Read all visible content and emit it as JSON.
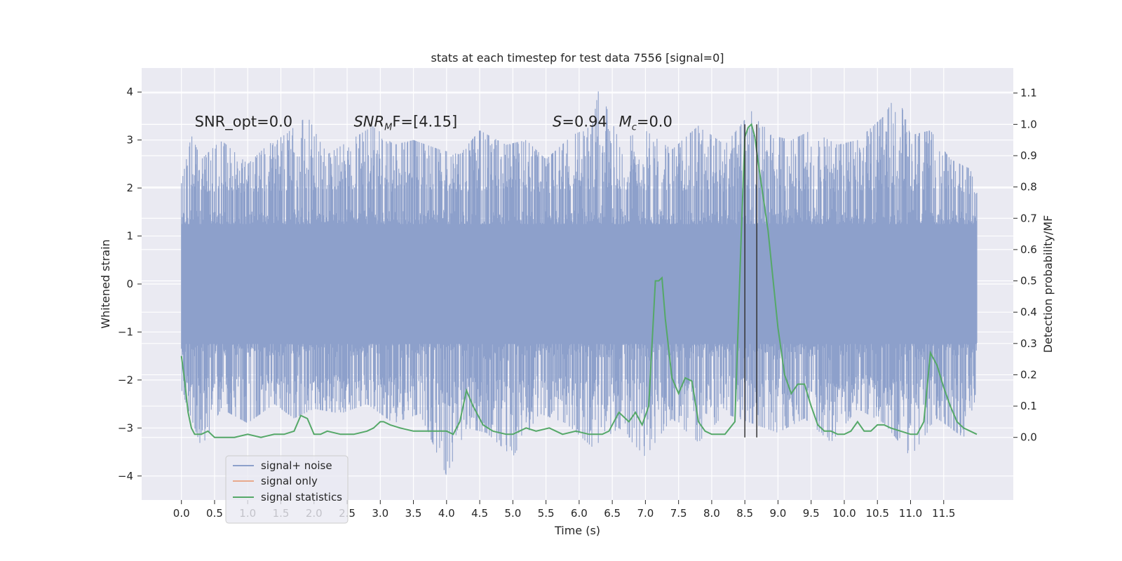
{
  "chart_data": {
    "type": "line",
    "title": "stats at each timestep for test data 7556 [signal=0]",
    "xlabel": "Time (s)",
    "ylabel": "Whitened strain",
    "y2label": "Detection probability/MF",
    "xlim": [
      -0.6,
      12.55
    ],
    "ylim": [
      -4.5,
      4.5
    ],
    "y2lim": [
      -0.2,
      1.18
    ],
    "xticks": [
      0.0,
      0.5,
      1.0,
      1.5,
      2.0,
      2.5,
      3.0,
      3.5,
      4.0,
      4.5,
      5.0,
      5.5,
      6.0,
      6.5,
      7.0,
      7.5,
      8.0,
      8.5,
      9.0,
      9.5,
      10.0,
      10.5,
      11.0,
      11.5
    ],
    "xtick_labels": [
      "0.0",
      "0.5",
      "1.0",
      "1.5",
      "2.0",
      "2.5",
      "3.0",
      "3.5",
      "4.0",
      "4.5",
      "5.0",
      "5.5",
      "6.0",
      "6.5",
      "7.0",
      "7.5",
      "8.0",
      "8.5",
      "9.0",
      "9.5",
      "10.0",
      "10.5",
      "11.0",
      "11.5"
    ],
    "yticks": [
      -4,
      -3,
      -2,
      -1,
      0,
      1,
      2,
      3,
      4
    ],
    "ytick_labels": [
      "−4",
      "−3",
      "−2",
      "−1",
      "0",
      "1",
      "2",
      "3",
      "4"
    ],
    "y2ticks": [
      0.0,
      0.1,
      0.2,
      0.3,
      0.4,
      0.5,
      0.6,
      0.7,
      0.8,
      0.9,
      1.0,
      1.1
    ],
    "y2tick_labels": [
      "0.0",
      "0.1",
      "0.2",
      "0.3",
      "0.4",
      "0.5",
      "0.6",
      "0.7",
      "0.8",
      "0.9",
      "1.0",
      "1.1"
    ],
    "noise": {
      "name": "signal+ noise",
      "color": "#8da0cb",
      "x_start": 0.0,
      "x_end": 12.0,
      "band_lower": -1.25,
      "band_upper": 1.25,
      "upper_envelope_x": [
        0.0,
        0.15,
        0.3,
        0.6,
        1.0,
        1.3,
        1.55,
        1.9,
        2.2,
        2.55,
        2.9,
        3.2,
        3.5,
        3.9,
        4.2,
        4.5,
        4.9,
        5.2,
        5.5,
        5.9,
        6.2,
        6.3,
        6.6,
        7.0,
        7.4,
        7.8,
        8.2,
        8.6,
        8.9,
        9.2,
        9.5,
        9.9,
        10.2,
        10.6,
        10.8,
        11.0,
        11.3,
        11.6,
        11.9,
        12.0
      ],
      "upper_envelope_y": [
        2.1,
        3.1,
        2.6,
        3.0,
        2.5,
        2.9,
        3.1,
        3.5,
        2.7,
        3.0,
        3.3,
        2.9,
        3.0,
        2.8,
        2.7,
        3.2,
        2.9,
        3.0,
        2.6,
        3.1,
        3.3,
        4.1,
        3.0,
        3.2,
        2.8,
        3.3,
        2.9,
        3.6,
        3.1,
        3.0,
        3.2,
        2.9,
        3.0,
        3.5,
        4.0,
        3.1,
        3.2,
        2.6,
        2.4,
        1.9
      ],
      "lower_envelope_x": [
        0.0,
        0.3,
        0.6,
        1.0,
        1.4,
        1.7,
        2.0,
        2.4,
        2.8,
        3.2,
        3.6,
        4.0,
        4.3,
        4.6,
        5.0,
        5.4,
        5.8,
        6.2,
        6.6,
        7.0,
        7.4,
        7.8,
        8.2,
        8.6,
        9.0,
        9.4,
        9.8,
        10.2,
        10.6,
        11.0,
        11.4,
        11.8,
        12.0
      ],
      "lower_envelope_y": [
        -2.2,
        -3.4,
        -2.6,
        -2.9,
        -2.5,
        -2.8,
        -2.6,
        -2.7,
        -2.5,
        -2.9,
        -2.7,
        -4.0,
        -3.0,
        -3.1,
        -3.6,
        -2.7,
        -2.9,
        -3.4,
        -3.0,
        -3.6,
        -2.8,
        -3.3,
        -2.7,
        -2.9,
        -3.1,
        -2.8,
        -3.3,
        -2.6,
        -2.9,
        -3.6,
        -2.8,
        -3.2,
        -2.3
      ]
    },
    "signal_only": {
      "name": "signal only",
      "color": "#e8a98c"
    },
    "stats": {
      "name": "signal statistics",
      "color": "#55a868",
      "x": [
        0.0,
        0.05,
        0.1,
        0.15,
        0.2,
        0.3,
        0.4,
        0.5,
        0.6,
        0.8,
        1.0,
        1.2,
        1.4,
        1.55,
        1.7,
        1.8,
        1.9,
        2.0,
        2.1,
        2.2,
        2.4,
        2.6,
        2.8,
        2.9,
        3.0,
        3.05,
        3.15,
        3.3,
        3.5,
        3.8,
        4.0,
        4.1,
        4.2,
        4.3,
        4.4,
        4.55,
        4.7,
        4.9,
        5.0,
        5.1,
        5.2,
        5.35,
        5.55,
        5.75,
        5.95,
        6.15,
        6.35,
        6.45,
        6.6,
        6.75,
        6.85,
        6.95,
        7.05,
        7.15,
        7.2,
        7.25,
        7.3,
        7.4,
        7.5,
        7.6,
        7.7,
        7.8,
        7.9,
        8.0,
        8.2,
        8.35,
        8.45,
        8.5,
        8.55,
        8.6,
        8.65,
        8.7,
        8.85,
        9.0,
        9.1,
        9.2,
        9.3,
        9.4,
        9.5,
        9.6,
        9.7,
        9.8,
        9.9,
        10.0,
        10.1,
        10.2,
        10.3,
        10.4,
        10.5,
        10.6,
        10.7,
        10.85,
        11.0,
        11.1,
        11.2,
        11.3,
        11.4,
        11.5,
        11.6,
        11.7,
        11.8,
        12.0
      ],
      "y": [
        0.26,
        0.18,
        0.08,
        0.03,
        0.01,
        0.01,
        0.02,
        0.0,
        0.0,
        0.0,
        0.01,
        0.0,
        0.01,
        0.01,
        0.02,
        0.07,
        0.06,
        0.01,
        0.01,
        0.02,
        0.01,
        0.01,
        0.02,
        0.03,
        0.05,
        0.05,
        0.04,
        0.03,
        0.02,
        0.02,
        0.02,
        0.01,
        0.05,
        0.15,
        0.1,
        0.04,
        0.02,
        0.01,
        0.01,
        0.02,
        0.03,
        0.02,
        0.03,
        0.01,
        0.02,
        0.01,
        0.01,
        0.02,
        0.08,
        0.05,
        0.08,
        0.04,
        0.1,
        0.5,
        0.5,
        0.51,
        0.38,
        0.19,
        0.14,
        0.19,
        0.18,
        0.05,
        0.02,
        0.01,
        0.01,
        0.05,
        0.67,
        0.96,
        0.99,
        1.0,
        0.96,
        0.88,
        0.66,
        0.35,
        0.2,
        0.14,
        0.17,
        0.17,
        0.1,
        0.04,
        0.02,
        0.02,
        0.01,
        0.01,
        0.02,
        0.05,
        0.02,
        0.02,
        0.04,
        0.04,
        0.03,
        0.02,
        0.01,
        0.01,
        0.05,
        0.27,
        0.23,
        0.16,
        0.1,
        0.05,
        0.03,
        0.01
      ]
    },
    "vlines": {
      "x": [
        8.5,
        8.68
      ],
      "ymin": 0.0,
      "ymax": 1.0,
      "color": "#333333"
    },
    "annotations": [
      {
        "text": "SNR_opt=0.0",
        "x": 0.2,
        "y": 1.0
      },
      {
        "text_main": "SNR",
        "text_sub": "M",
        "text_end": "F=[4.15]",
        "x": 2.6,
        "y": 1.0
      },
      {
        "text_main": "S",
        "text_end": "=0.94",
        "x": 5.6,
        "y": 1.0
      },
      {
        "text_main": "M",
        "text_sub": "c",
        "text_end": "=0.0",
        "x": 6.6,
        "y": 1.0
      }
    ],
    "legend": {
      "position": "lower-left",
      "entries": [
        "signal+ noise",
        "signal only",
        "signal statistics"
      ]
    }
  }
}
